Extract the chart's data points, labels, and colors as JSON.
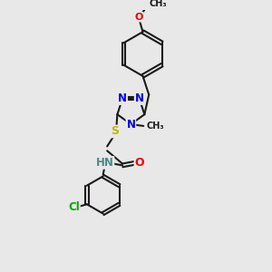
{
  "bg_color": "#e8e8e8",
  "bond_color": "#1a1a1a",
  "bond_width": 1.5,
  "colors": {
    "N": "#0000ee",
    "O": "#ee0000",
    "S": "#bbbb00",
    "Cl": "#00aa00",
    "C": "#1a1a1a",
    "H": "#4a8a8a"
  },
  "xlim": [
    -1.5,
    1.8
  ],
  "ylim": [
    -3.2,
    4.5
  ]
}
